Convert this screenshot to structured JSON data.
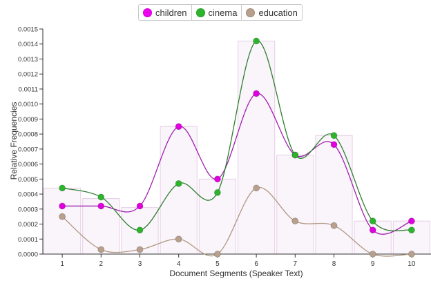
{
  "legend": {
    "items": [
      {
        "label": "children",
        "color": "#f000f0"
      },
      {
        "label": "cinema",
        "color": "#2ab52a"
      },
      {
        "label": "education",
        "color": "#b8a08c"
      }
    ]
  },
  "chart_data": {
    "type": "line",
    "xlabel": "Document Segments (Speaker Text)",
    "ylabel": "Relative Frequencies",
    "categories": [
      "1",
      "2",
      "3",
      "4",
      "5",
      "6",
      "7",
      "8",
      "9",
      "10"
    ],
    "ylim": [
      0,
      0.0015
    ],
    "yticks": [
      "0.0000",
      "0.0001",
      "0.0002",
      "0.0003",
      "0.0004",
      "0.0005",
      "0.0006",
      "0.0007",
      "0.0008",
      "0.0009",
      "0.0010",
      "0.0011",
      "0.0012",
      "0.0013",
      "0.0014",
      "0.0015"
    ],
    "bars": [
      0.00044,
      0.00037,
      0.00031,
      0.00085,
      0.0005,
      0.00142,
      0.00066,
      0.00079,
      0.00022,
      0.00022
    ],
    "bar_fill": "#faf4fb",
    "bar_stroke": "#e6cfe6",
    "series": [
      {
        "name": "children",
        "color": "#e000e0",
        "line": "#a020b0",
        "values": [
          0.00032,
          0.00032,
          0.00032,
          0.00085,
          0.0005,
          0.00107,
          0.00066,
          0.00073,
          0.00016,
          0.00022
        ]
      },
      {
        "name": "cinema",
        "color": "#2ab52a",
        "line": "#2f7f2f",
        "values": [
          0.00044,
          0.00038,
          0.00016,
          0.00047,
          0.00041,
          0.00142,
          0.00066,
          0.00079,
          0.00022,
          0.00016
        ]
      },
      {
        "name": "education",
        "color": "#b8a08c",
        "line": "#b09880",
        "values": [
          0.00025,
          3e-05,
          3e-05,
          0.0001,
          0.0,
          0.00044,
          0.00022,
          0.00019,
          0.0,
          0.0
        ]
      }
    ],
    "grid": false,
    "legend_position": "top-center"
  }
}
